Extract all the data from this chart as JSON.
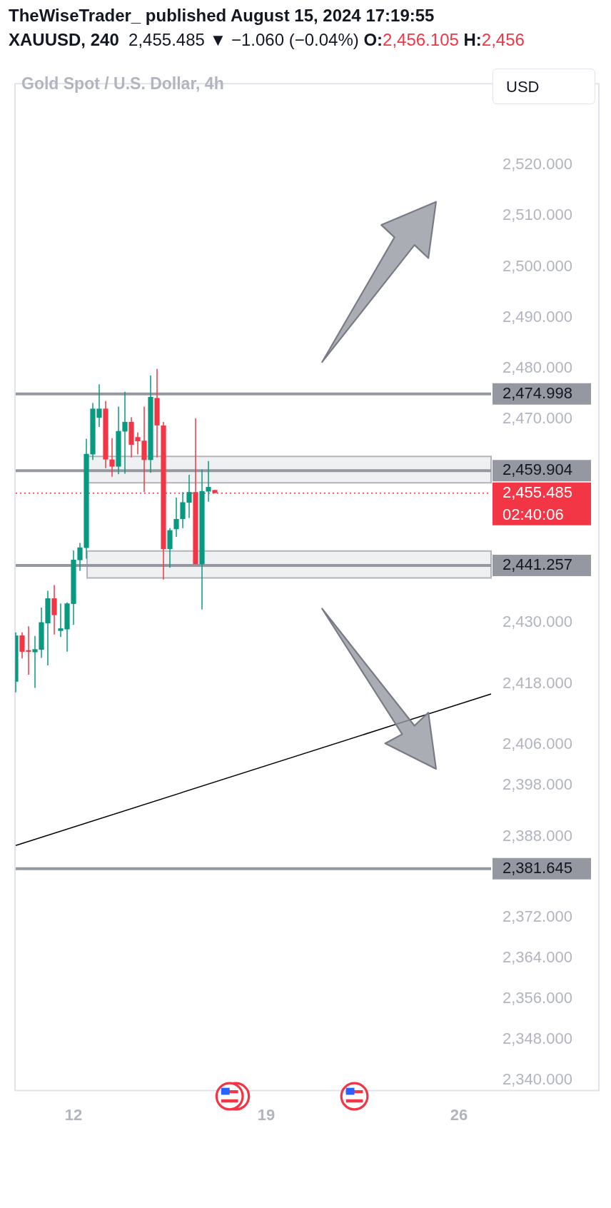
{
  "chart_data": {
    "type": "candlestick",
    "title": "Gold Spot / U.S. Dollar, 4h",
    "categories": [
      null,
      null,
      null,
      null,
      null,
      null,
      null,
      null,
      null,
      "12",
      null,
      null,
      null,
      null,
      null,
      null,
      null,
      null,
      null,
      null,
      null,
      null,
      null,
      null,
      null,
      null,
      null,
      null,
      null,
      null,
      null,
      null,
      null,
      null,
      null,
      null,
      null,
      null,
      null,
      "19",
      null,
      null,
      null,
      null,
      null,
      null,
      null,
      null,
      null,
      null,
      null,
      null,
      null,
      null,
      null,
      null,
      null,
      null,
      null,
      null,
      null,
      null,
      null,
      null,
      null,
      null,
      null,
      null,
      null,
      "26",
      null,
      null,
      null,
      null,
      null
    ],
    "ohlc": [
      [
        2418.4,
        2428.1,
        2416.3,
        2427.5
      ],
      [
        2427.5,
        2428.1,
        2423.0,
        2424.3
      ],
      [
        2424.6,
        2429.3,
        2419.8,
        2424.3
      ],
      [
        2424.2,
        2427.4,
        2417.2,
        2424.8
      ],
      [
        2424.7,
        2433.0,
        2423.1,
        2430.1
      ],
      [
        2429.9,
        2436.3,
        2421.6,
        2434.8
      ],
      [
        2434.8,
        2437.4,
        2427.7,
        2431.5
      ],
      [
        2428.4,
        2433.8,
        2427.2,
        2428.9
      ],
      [
        2428.7,
        2434.0,
        2424.3,
        2433.8
      ],
      [
        2433.7,
        2444.2,
        2429.6,
        2442.4
      ],
      [
        2442.3,
        2445.7,
        2440.2,
        2444.8
      ],
      [
        2444.7,
        2466.2,
        2442.6,
        2463.2
      ],
      [
        2463.1,
        2473.2,
        2462.0,
        2472.1
      ],
      [
        2470.3,
        2476.9,
        2468.5,
        2472.1
      ],
      [
        2472.1,
        2473.6,
        2460.4,
        2462.1
      ],
      [
        2462.1,
        2466.3,
        2458.7,
        2460.7
      ],
      [
        2460.7,
        2472.5,
        2459.2,
        2467.7
      ],
      [
        2467.6,
        2475.4,
        2459.3,
        2469.5
      ],
      [
        2469.5,
        2470.4,
        2462.5,
        2465.0
      ],
      [
        2466.5,
        2467.4,
        2463.1,
        2465.7
      ],
      [
        2465.8,
        2472.5,
        2455.7,
        2462.0
      ],
      [
        2462.0,
        2478.6,
        2459.5,
        2474.4
      ],
      [
        2474.2,
        2479.9,
        2462.5,
        2468.8
      ],
      [
        2468.8,
        2469.5,
        2438.5,
        2444.5
      ],
      [
        2444.5,
        2448.6,
        2440.8,
        2448.2
      ],
      [
        2448.4,
        2454.6,
        2446.9,
        2450.4
      ],
      [
        2450.4,
        2455.7,
        2448.6,
        2453.7
      ],
      [
        2453.6,
        2459.1,
        2450.6,
        2455.7
      ],
      [
        2455.7,
        2470.2,
        2441.5,
        2441.5
      ],
      [
        2441.5,
        2460.1,
        2432.6,
        2455.9
      ],
      [
        2455.8,
        2461.8,
        2453.8,
        2456.7
      ],
      [
        2456.1,
        2456.1,
        2455.5,
        2455.5
      ],
      null,
      null,
      null,
      null,
      null,
      null,
      null,
      null,
      null,
      null,
      null,
      null,
      null,
      null,
      null,
      null,
      null,
      null,
      null,
      null,
      null,
      null,
      null,
      null,
      null,
      null,
      null,
      null,
      null,
      null,
      null,
      null,
      null,
      null,
      null,
      null,
      null,
      null,
      null,
      null,
      null,
      null,
      null
    ],
    "colors": [
      "#089981",
      "#f23645",
      "#f23645",
      "#089981",
      "#089981",
      "#089981",
      "#f23645",
      "#089981",
      "#089981",
      "#089981",
      "#089981",
      "#089981",
      "#089981",
      "#089981",
      "#f23645",
      "#f23645",
      "#089981",
      "#089981",
      "#f23645",
      "#f23645",
      "#f23645",
      "#089981",
      "#f23645",
      "#f23645",
      "#089981",
      "#089981",
      "#089981",
      "#089981",
      "#f23645",
      "#089981",
      "#089981",
      "#f23645",
      null,
      null,
      null,
      null,
      null,
      null,
      null,
      null,
      null,
      null,
      null,
      null,
      null,
      null,
      null,
      null,
      null,
      null,
      null,
      null,
      null,
      null,
      null,
      null,
      null,
      null,
      null,
      null,
      null,
      null,
      null,
      null,
      null,
      null,
      null,
      null,
      null,
      null,
      null,
      null,
      null,
      null,
      null
    ],
    "series": [
      {
        "type": "line",
        "color": "#000000",
        "values": [
          2386.2,
          null,
          null,
          null,
          null,
          null,
          null,
          null,
          null,
          null,
          null,
          null,
          null,
          null,
          null,
          null,
          null,
          null,
          null,
          null,
          null,
          null,
          null,
          null,
          null,
          null,
          null,
          null,
          null,
          null,
          null,
          null,
          null,
          null,
          null,
          null,
          null,
          null,
          null,
          null,
          null,
          null,
          null,
          null,
          null,
          null,
          null,
          null,
          null,
          null,
          null,
          null,
          null,
          null,
          null,
          null,
          null,
          null,
          null,
          null,
          null,
          null,
          null,
          null,
          null,
          null,
          null,
          null,
          null,
          null,
          null,
          null,
          null,
          null,
          2416.0
        ]
      }
    ],
    "ylim": [
      2338,
      2536
    ],
    "yticks": [
      {
        "value": 2520,
        "label": "2,520.000"
      },
      {
        "value": 2510,
        "label": "2,510.000"
      },
      {
        "value": 2500,
        "label": "2,500.000"
      },
      {
        "value": 2490,
        "label": "2,490.000"
      },
      {
        "value": 2480,
        "label": "2,480.000"
      },
      {
        "value": 2470,
        "label": "2,470.000"
      },
      {
        "value": 2430,
        "label": "2,430.000"
      },
      {
        "value": 2418,
        "label": "2,418.000"
      },
      {
        "value": 2406,
        "label": "2,406.000"
      },
      {
        "value": 2398,
        "label": "2,398.000"
      },
      {
        "value": 2388,
        "label": "2,388.000"
      },
      {
        "value": 2372,
        "label": "2,372.000"
      },
      {
        "value": 2364,
        "label": "2,364.000"
      },
      {
        "value": 2356,
        "label": "2,356.000"
      },
      {
        "value": 2348,
        "label": "2,348.000"
      },
      {
        "value": 2340,
        "label": "2,340.000"
      }
    ],
    "ref_lines": [
      {
        "axis": "y",
        "value": 2474.998,
        "label": "2,474.998",
        "color": "#9598a1"
      },
      {
        "axis": "y",
        "value": 2459.904,
        "label": "2,459.904",
        "color": "#9598a1"
      },
      {
        "axis": "y",
        "value": 2441.257,
        "label": "2,441.257",
        "color": "#9598a1"
      },
      {
        "axis": "y",
        "value": 2381.645,
        "label": "2,381.645",
        "color": "#9598a1"
      },
      {
        "axis": "y",
        "value": 2455.485,
        "label": "2,455.485",
        "color": "#f23645",
        "line_style": "dotted"
      }
    ],
    "bands": [
      {
        "axis": "y",
        "from": 2457.5,
        "to": 2462.7,
        "color": "#9598a1"
      },
      {
        "axis": "y",
        "from": 2438.8,
        "to": 2444.1,
        "color": "#9598a1"
      }
    ],
    "annotations": [
      "TheWiseTrader_ published August 15, 2024 17:19:55",
      "XAUUSD, 240",
      "2,455.485 ▼ −1.060 (−0.04%)",
      "O:",
      "2,456.105",
      "H:",
      "2,456",
      "USD",
      "02:40:06"
    ],
    "grid": false,
    "legend": false
  }
}
